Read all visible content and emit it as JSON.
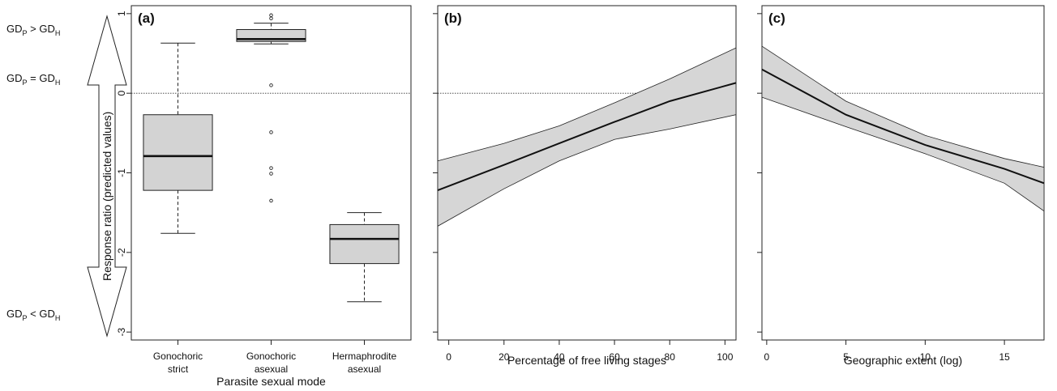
{
  "side_labels": {
    "gd_greater": {
      "a": "GD",
      "sa": "P",
      "op": " > GD",
      "sb": "H"
    },
    "gd_equal": {
      "a": "GD",
      "sa": "P",
      "op": "  = GD",
      "sb": "H"
    },
    "gd_less": {
      "a": "GD",
      "sa": "P",
      "op": "  < GD",
      "sb": "H"
    }
  },
  "ylabel": "Response ratio (predicted values)",
  "chart_data": [
    {
      "panel": "(a)",
      "type": "box",
      "xlabel": "Parasite sexual mode",
      "ylabel": "Response ratio (predicted values)",
      "ylim": [
        -3.1,
        1.1
      ],
      "yticks": [
        -3,
        -2,
        -1,
        0,
        1
      ],
      "reference_line": 0,
      "categories": [
        [
          "Gonochoric",
          "strict"
        ],
        [
          "Gonochoric",
          "asexual"
        ],
        [
          "Hermaphrodite",
          "asexual"
        ]
      ],
      "boxes": [
        {
          "whisker_low": -1.76,
          "q1": -1.22,
          "median": -0.79,
          "q3": -0.27,
          "whisker_high": 0.63,
          "outliers": []
        },
        {
          "whisker_low": 0.62,
          "q1": 0.65,
          "median": 0.68,
          "q3": 0.8,
          "whisker_high": 0.88,
          "outliers": [
            0.98,
            0.94,
            0.1,
            -0.49,
            -0.94,
            -1.01,
            -1.35
          ]
        },
        {
          "whisker_low": -2.62,
          "q1": -2.14,
          "median": -1.83,
          "q3": -1.65,
          "whisker_high": -1.5,
          "outliers": []
        }
      ]
    },
    {
      "panel": "(b)",
      "type": "line",
      "xlabel": "Percentage of free living stages",
      "xlim": [
        -4,
        104
      ],
      "xticks": [
        0,
        20,
        40,
        60,
        80,
        100
      ],
      "ylim": [
        -3.1,
        1.1
      ],
      "reference_line": 0,
      "x": [
        -4,
        20,
        40,
        60,
        80,
        104
      ],
      "y": [
        -1.22,
        -0.9,
        -0.63,
        -0.36,
        -0.1,
        0.13
      ],
      "ci_lower": [
        -1.67,
        -1.2,
        -0.85,
        -0.58,
        -0.45,
        -0.27
      ],
      "ci_upper": [
        -0.85,
        -0.63,
        -0.41,
        -0.12,
        0.18,
        0.57
      ]
    },
    {
      "panel": "(c)",
      "type": "line",
      "xlabel": "Geographic extent (log)",
      "xlim": [
        -0.3,
        17.5
      ],
      "xticks": [
        0,
        5,
        10,
        15
      ],
      "ylim": [
        -3.1,
        1.1
      ],
      "reference_line": 0,
      "x": [
        -0.3,
        5,
        10,
        15,
        17.5
      ],
      "y": [
        0.3,
        -0.27,
        -0.65,
        -0.95,
        -1.13
      ],
      "ci_lower": [
        -0.05,
        -0.42,
        -0.76,
        -1.13,
        -1.48
      ],
      "ci_upper": [
        0.59,
        -0.1,
        -0.53,
        -0.82,
        -0.93
      ]
    }
  ]
}
